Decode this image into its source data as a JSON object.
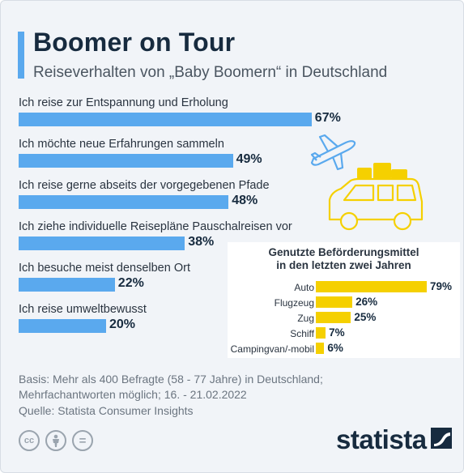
{
  "header": {
    "title": "Boomer on Tour",
    "subtitle": "Reiseverhalten von „Baby Boomern“ in Deutschland"
  },
  "chart_data": [
    {
      "type": "bar",
      "orientation": "horizontal",
      "categories": [
        "Ich reise zur Entspannung und Erholung",
        "Ich möchte neue Erfahrungen sammeln",
        "Ich reise gerne abseits der vorgegebenen Pfade",
        "Ich ziehe individuelle Reisepläne Pauschalreisen vor",
        "Ich besuche meist denselben Ort",
        "Ich reise umweltbewusst"
      ],
      "values": [
        67,
        49,
        48,
        38,
        22,
        20
      ],
      "value_labels": [
        "67%",
        "49%",
        "48%",
        "38%",
        "22%",
        "20%"
      ],
      "unit": "%",
      "xlim": [
        0,
        100
      ],
      "grid": false,
      "color": "#5aa9ee"
    },
    {
      "type": "bar",
      "orientation": "horizontal",
      "title": "Genutzte Beförderungsmittel in den letzten zwei Jahren",
      "title_lines": [
        "Genutzte Beförderungsmittel",
        "in den letzten zwei Jahren"
      ],
      "categories": [
        "Auto",
        "Flugzeug",
        "Zug",
        "Schiff",
        "Campingvan/-mobil"
      ],
      "values": [
        79,
        26,
        25,
        7,
        6
      ],
      "value_labels": [
        "79%",
        "26%",
        "25%",
        "7%",
        "6%"
      ],
      "unit": "%",
      "xlim": [
        0,
        100
      ],
      "grid": false,
      "color": "#f5d000"
    }
  ],
  "icons": {
    "plane": "airplane-icon",
    "car": "car-with-luggage-icon",
    "cc": "creative-commons-icon",
    "by": "attribution-icon",
    "nd": "no-derivatives-icon"
  },
  "icon_glyphs": {
    "cc": "cc",
    "nd": "="
  },
  "colors": {
    "main_bar": "#5aa9ee",
    "inset_bar": "#f5d000",
    "title": "#172b3f",
    "background": "#f1f4f8"
  },
  "footer": {
    "basis_line1": "Basis: Mehr als 400 Befragte (58 - 77 Jahre) in Deutschland;",
    "basis_line2": "Mehrfachantworten möglich; 16. - 21.02.2022",
    "source": "Quelle: Statista Consumer Insights",
    "brand": "statista"
  }
}
